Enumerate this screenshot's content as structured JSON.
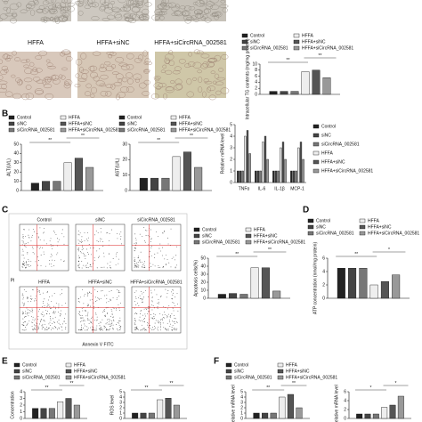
{
  "panel_labels": [
    "B",
    "C",
    "D",
    "E",
    "F"
  ],
  "images": {
    "captions": [
      "HFFA",
      "HFFA+siNC",
      "HFFA+siCircRNA_002581"
    ]
  },
  "flow": {
    "titles": [
      "Control",
      "siNC",
      "siCircRNA_002581",
      "HFFA",
      "HFFA+siNC",
      "HFFA+siCircRNA_002581"
    ],
    "x_label": "Annexin V FITC",
    "y_label": "PI"
  },
  "chart_data": [
    {
      "type": "bar",
      "y_label": "Intracellular TG contents (mg/mg protein)",
      "legend": "top",
      "ylim": [
        0,
        10
      ],
      "yticks": [
        0,
        2,
        4,
        6,
        8,
        10
      ],
      "annotations": [
        "**",
        "**"
      ],
      "series": [
        {
          "name": "Control",
          "color": "#222222",
          "values": [
            1
          ]
        },
        {
          "name": "siNC",
          "color": "#444444",
          "values": [
            1
          ]
        },
        {
          "name": "siCircRNA_002581",
          "color": "#777777",
          "values": [
            1
          ]
        },
        {
          "name": "HFFA",
          "color": "#eeeeee",
          "values": [
            7.5
          ]
        },
        {
          "name": "HFFA+siNC",
          "color": "#555555",
          "values": [
            8
          ]
        },
        {
          "name": "HFFA+siCircRNA_002581",
          "color": "#999999",
          "values": [
            5.5
          ]
        }
      ]
    },
    {
      "type": "bar",
      "y_label": "ALT(U/L)",
      "legend": "top",
      "ylim": [
        0,
        50
      ],
      "yticks": [
        0,
        10,
        20,
        30,
        40,
        50
      ],
      "annotations": [
        "**",
        "**"
      ],
      "series": [
        {
          "name": "Control",
          "color": "#222222",
          "values": [
            8
          ]
        },
        {
          "name": "siNC",
          "color": "#444444",
          "values": [
            10
          ]
        },
        {
          "name": "siCircRNA_002581",
          "color": "#777777",
          "values": [
            10
          ]
        },
        {
          "name": "HFFA",
          "color": "#eeeeee",
          "values": [
            30
          ]
        },
        {
          "name": "HFFA+siNC",
          "color": "#555555",
          "values": [
            35
          ]
        },
        {
          "name": "HFFA+siCircRNA_002581",
          "color": "#999999",
          "values": [
            25
          ]
        }
      ]
    },
    {
      "type": "bar",
      "y_label": "AST(U/L)",
      "legend": "top",
      "ylim": [
        0,
        30
      ],
      "yticks": [
        0,
        10,
        20,
        30
      ],
      "annotations": [
        "**",
        "**"
      ],
      "series": [
        {
          "name": "Control",
          "color": "#222222",
          "values": [
            8
          ]
        },
        {
          "name": "siNC",
          "color": "#444444",
          "values": [
            8
          ]
        },
        {
          "name": "siCircRNA_002581",
          "color": "#777777",
          "values": [
            8
          ]
        },
        {
          "name": "HFFA",
          "color": "#eeeeee",
          "values": [
            22
          ]
        },
        {
          "name": "HFFA+siNC",
          "color": "#555555",
          "values": [
            25
          ]
        },
        {
          "name": "HFFA+siCircRNA_002581",
          "color": "#999999",
          "values": [
            15
          ]
        }
      ]
    },
    {
      "type": "bar",
      "y_label": "Relative mRNA level",
      "legend": "right",
      "ylim": [
        0,
        5
      ],
      "yticks": [
        0,
        1,
        2,
        3,
        4,
        5
      ],
      "categories": [
        "TNFα",
        "IL-6",
        "IL-1β",
        "MCP-1"
      ],
      "series": [
        {
          "name": "Control",
          "color": "#222222",
          "values": [
            1,
            1,
            1,
            1
          ]
        },
        {
          "name": "siNC",
          "color": "#444444",
          "values": [
            1,
            1,
            1,
            1
          ]
        },
        {
          "name": "siCircRNA_002581",
          "color": "#777777",
          "values": [
            1,
            1,
            1,
            1
          ]
        },
        {
          "name": "HFFA",
          "color": "#eeeeee",
          "values": [
            4,
            3.5,
            3,
            3
          ]
        },
        {
          "name": "HFFA+siNC",
          "color": "#555555",
          "values": [
            4.5,
            4,
            3.5,
            3.5
          ]
        },
        {
          "name": "HFFA+siCircRNA_002581",
          "color": "#999999",
          "values": [
            2.5,
            2,
            2,
            2
          ]
        }
      ]
    },
    {
      "type": "bar",
      "y_label": "Apoptosis cells(%)",
      "legend": "top",
      "ylim": [
        0,
        50
      ],
      "yticks": [
        0,
        10,
        20,
        30,
        40,
        50
      ],
      "annotations": [
        "**",
        "**"
      ],
      "series": [
        {
          "name": "Control",
          "color": "#222222",
          "values": [
            5
          ]
        },
        {
          "name": "siNC",
          "color": "#444444",
          "values": [
            6
          ]
        },
        {
          "name": "siCircRNA_002581",
          "color": "#777777",
          "values": [
            5
          ]
        },
        {
          "name": "HFFA",
          "color": "#eeeeee",
          "values": [
            38
          ]
        },
        {
          "name": "HFFA+siNC",
          "color": "#555555",
          "values": [
            38
          ]
        },
        {
          "name": "HFFA+siCircRNA_002581",
          "color": "#999999",
          "values": [
            9
          ]
        }
      ]
    },
    {
      "type": "bar",
      "y_label": "ATP concentration (nmol/mg protein)",
      "legend": "top",
      "ylim": [
        0,
        6
      ],
      "yticks": [
        0,
        2,
        4,
        6
      ],
      "annotations": [
        "**",
        "*"
      ],
      "series": [
        {
          "name": "Control",
          "color": "#222222",
          "values": [
            4.5
          ]
        },
        {
          "name": "siNC",
          "color": "#444444",
          "values": [
            4.5
          ]
        },
        {
          "name": "siCircRNA_002581",
          "color": "#777777",
          "values": [
            4.5
          ]
        },
        {
          "name": "HFFA",
          "color": "#eeeeee",
          "values": [
            2
          ]
        },
        {
          "name": "HFFA+siNC",
          "color": "#555555",
          "values": [
            2.5
          ]
        },
        {
          "name": "HFFA+siCircRNA_002581",
          "color": "#999999",
          "values": [
            3.5
          ]
        }
      ]
    },
    {
      "type": "bar",
      "y_label": "Concentration",
      "legend": "top",
      "ylim": [
        0,
        4
      ],
      "yticks": [
        0,
        1,
        2,
        3,
        4
      ],
      "annotations": [
        "**",
        "**"
      ],
      "series": [
        {
          "name": "Control",
          "color": "#222222",
          "values": [
            1.5
          ]
        },
        {
          "name": "siNC",
          "color": "#444444",
          "values": [
            1.5
          ]
        },
        {
          "name": "siCircRNA_002581",
          "color": "#777777",
          "values": [
            1.5
          ]
        },
        {
          "name": "HFFA",
          "color": "#eeeeee",
          "values": [
            2.5
          ]
        },
        {
          "name": "HFFA+siNC",
          "color": "#555555",
          "values": [
            3
          ]
        },
        {
          "name": "HFFA+siCircRNA_002581",
          "color": "#999999",
          "values": [
            2
          ]
        }
      ]
    },
    {
      "type": "bar",
      "y_label": "ROS level",
      "ylim": [
        0,
        5
      ],
      "yticks": [
        0,
        1,
        2,
        3,
        4,
        5
      ],
      "annotations": [
        "**",
        "**"
      ],
      "series": [
        {
          "color": "#222222",
          "values": [
            1
          ]
        },
        {
          "color": "#444444",
          "values": [
            1
          ]
        },
        {
          "color": "#777777",
          "values": [
            1
          ]
        },
        {
          "color": "#eeeeee",
          "values": [
            3.5
          ]
        },
        {
          "color": "#555555",
          "values": [
            3.8
          ]
        },
        {
          "color": "#999999",
          "values": [
            2.5
          ]
        }
      ]
    },
    {
      "type": "bar",
      "y_label": "Relative mRNA level",
      "legend": "top",
      "ylim": [
        0,
        5
      ],
      "yticks": [
        0,
        1,
        2,
        3,
        4,
        5
      ],
      "annotations": [
        "**",
        "**"
      ],
      "series": [
        {
          "name": "Control",
          "color": "#222222",
          "values": [
            1
          ]
        },
        {
          "name": "siNC",
          "color": "#444444",
          "values": [
            1
          ]
        },
        {
          "name": "siCircRNA_002581",
          "color": "#777777",
          "values": [
            1
          ]
        },
        {
          "name": "HFFA",
          "color": "#eeeeee",
          "values": [
            4
          ]
        },
        {
          "name": "HFFA+siNC",
          "color": "#555555",
          "values": [
            4.5
          ]
        },
        {
          "name": "HFFA+siCircRNA_002581",
          "color": "#999999",
          "values": [
            2
          ]
        }
      ]
    },
    {
      "type": "bar",
      "y_label": "Relative mRNA level",
      "ylim": [
        0,
        6
      ],
      "yticks": [
        0,
        2,
        4,
        6
      ],
      "annotations": [
        "*",
        "*"
      ],
      "series": [
        {
          "color": "#222222",
          "values": [
            1
          ]
        },
        {
          "color": "#444444",
          "values": [
            1
          ]
        },
        {
          "color": "#777777",
          "values": [
            1
          ]
        },
        {
          "color": "#eeeeee",
          "values": [
            2.5
          ]
        },
        {
          "color": "#555555",
          "values": [
            3
          ]
        },
        {
          "color": "#999999",
          "values": [
            5
          ]
        }
      ]
    }
  ]
}
